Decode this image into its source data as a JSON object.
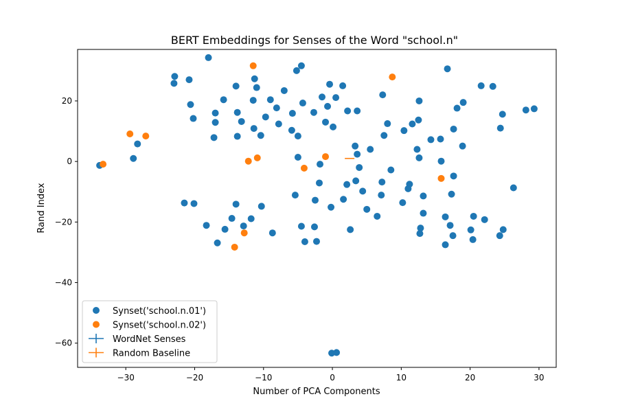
{
  "chart_data": {
    "type": "scatter",
    "title": "BERT Embeddings for Senses of the Word \"school.n\"",
    "xlabel": "Number of PCA Components",
    "ylabel": "Rand Index",
    "xlim": [
      -37,
      32.5
    ],
    "ylim": [
      -68,
      37
    ],
    "xticks": [
      -30,
      -20,
      -10,
      0,
      10,
      20,
      30
    ],
    "yticks": [
      -60,
      -40,
      -20,
      0,
      20
    ],
    "grid": false,
    "legend_position": "lower-left",
    "colors": {
      "series1": "#1f77b4",
      "series2": "#ff7f0e"
    },
    "series": [
      {
        "name": "Synset('school.n.01')",
        "kind": "scatter",
        "color": "#1f77b4",
        "points": [
          [
            -18.0,
            34.3
          ],
          [
            -4.5,
            31.6
          ],
          [
            -5.2,
            30.0
          ],
          [
            16.7,
            30.6
          ],
          [
            -22.9,
            28.1
          ],
          [
            -11.3,
            27.3
          ],
          [
            -20.8,
            27.0
          ],
          [
            -23.0,
            25.8
          ],
          [
            -14.0,
            24.9
          ],
          [
            -11.0,
            24.4
          ],
          [
            -0.4,
            25.5
          ],
          [
            1.5,
            25.0
          ],
          [
            21.6,
            25.0
          ],
          [
            23.3,
            24.8
          ],
          [
            -7.0,
            23.4
          ],
          [
            7.3,
            22.0
          ],
          [
            -1.5,
            21.3
          ],
          [
            0.5,
            21.1
          ],
          [
            -15.8,
            20.4
          ],
          [
            -9.0,
            20.4
          ],
          [
            -11.5,
            20.2
          ],
          [
            12.6,
            20.0
          ],
          [
            19.0,
            19.5
          ],
          [
            -4.3,
            19.3
          ],
          [
            -20.6,
            18.8
          ],
          [
            -0.7,
            18.2
          ],
          [
            -8.1,
            17.7
          ],
          [
            18.1,
            17.6
          ],
          [
            28.1,
            17.0
          ],
          [
            29.3,
            17.4
          ],
          [
            2.2,
            16.7
          ],
          [
            3.6,
            16.7
          ],
          [
            -17.0,
            16.0
          ],
          [
            -13.8,
            16.2
          ],
          [
            -5.8,
            15.9
          ],
          [
            -2.7,
            16.2
          ],
          [
            24.7,
            15.6
          ],
          [
            -9.7,
            14.7
          ],
          [
            -20.2,
            14.2
          ],
          [
            -13.2,
            13.2
          ],
          [
            12.5,
            13.7
          ],
          [
            -17.0,
            12.9
          ],
          [
            -7.8,
            12.4
          ],
          [
            8.0,
            12.5
          ],
          [
            11.6,
            12.4
          ],
          [
            -1.0,
            13.0
          ],
          [
            0.1,
            11.4
          ],
          [
            -11.4,
            10.9
          ],
          [
            17.6,
            10.7
          ],
          [
            24.4,
            11.0
          ],
          [
            -5.9,
            10.3
          ],
          [
            10.4,
            10.2
          ],
          [
            -10.4,
            8.6
          ],
          [
            -5.0,
            8.4
          ],
          [
            -13.8,
            8.3
          ],
          [
            -17.2,
            7.9
          ],
          [
            7.5,
            8.6
          ],
          [
            14.3,
            7.2
          ],
          [
            15.7,
            7.4
          ],
          [
            -28.3,
            5.8
          ],
          [
            3.3,
            5.1
          ],
          [
            5.5,
            4.0
          ],
          [
            18.9,
            5.1
          ],
          [
            12.3,
            4.0
          ],
          [
            3.6,
            2.4
          ],
          [
            -5.0,
            1.4
          ],
          [
            -28.9,
            1.0
          ],
          [
            12.6,
            1.2
          ],
          [
            15.8,
            0.1
          ],
          [
            -33.8,
            -1.3
          ],
          [
            -1.8,
            -0.9
          ],
          [
            3.9,
            -2.0
          ],
          [
            8.5,
            -2.8
          ],
          [
            17.6,
            -4.8
          ],
          [
            3.4,
            -6.4
          ],
          [
            7.2,
            -6.8
          ],
          [
            -1.9,
            -7.1
          ],
          [
            2.1,
            -7.6
          ],
          [
            11.2,
            -7.5
          ],
          [
            11.0,
            -9.0
          ],
          [
            26.3,
            -8.7
          ],
          [
            4.4,
            -9.8
          ],
          [
            -5.4,
            -11.1
          ],
          [
            7.1,
            -11.1
          ],
          [
            13.2,
            -11.4
          ],
          [
            17.3,
            -10.8
          ],
          [
            -2.5,
            -12.8
          ],
          [
            1.6,
            -12.5
          ],
          [
            -21.5,
            -13.7
          ],
          [
            -20.1,
            -13.9
          ],
          [
            10.2,
            -13.6
          ],
          [
            -14.0,
            -14.1
          ],
          [
            -10.3,
            -14.8
          ],
          [
            -0.2,
            -15.1
          ],
          [
            5.0,
            -15.8
          ],
          [
            13.2,
            -17.1
          ],
          [
            6.5,
            -18.1
          ],
          [
            20.5,
            -18.1
          ],
          [
            16.4,
            -18.3
          ],
          [
            -14.6,
            -18.8
          ],
          [
            -11.8,
            -18.9
          ],
          [
            22.1,
            -19.2
          ],
          [
            -18.3,
            -21.1
          ],
          [
            -12.9,
            -21.3
          ],
          [
            -4.5,
            -21.4
          ],
          [
            -2.6,
            -21.6
          ],
          [
            12.8,
            -22.0
          ],
          [
            17.1,
            -21.1
          ],
          [
            -15.6,
            -22.4
          ],
          [
            2.6,
            -22.5
          ],
          [
            24.8,
            -22.5
          ],
          [
            20.1,
            -22.6
          ],
          [
            -8.7,
            -23.6
          ],
          [
            12.7,
            -23.8
          ],
          [
            17.5,
            -24.5
          ],
          [
            24.3,
            -24.5
          ],
          [
            20.4,
            -25.8
          ],
          [
            -4.0,
            -26.5
          ],
          [
            -2.3,
            -26.4
          ],
          [
            -16.7,
            -26.9
          ],
          [
            16.4,
            -27.5
          ],
          [
            -0.1,
            -63.3
          ],
          [
            0.6,
            -63.1
          ]
        ]
      },
      {
        "name": "Synset('school.n.02')",
        "kind": "scatter",
        "color": "#ff7f0e",
        "points": [
          [
            -11.5,
            31.6
          ],
          [
            8.7,
            27.9
          ],
          [
            -29.4,
            9.1
          ],
          [
            -27.1,
            8.4
          ],
          [
            -1.0,
            1.6
          ],
          [
            -10.9,
            1.2
          ],
          [
            -12.2,
            0.1
          ],
          [
            -33.3,
            -0.9
          ],
          [
            -4.1,
            -2.2
          ],
          [
            15.8,
            -5.6
          ],
          [
            -12.8,
            -23.6
          ],
          [
            -14.2,
            -28.3
          ]
        ]
      },
      {
        "name": "WordNet Senses",
        "kind": "errorbar",
        "color": "#1f77b4",
        "points": []
      },
      {
        "name": "Random Baseline",
        "kind": "errorbar",
        "color": "#ff7f0e",
        "points": [
          [
            2.5,
            1.0
          ]
        ]
      }
    ]
  }
}
